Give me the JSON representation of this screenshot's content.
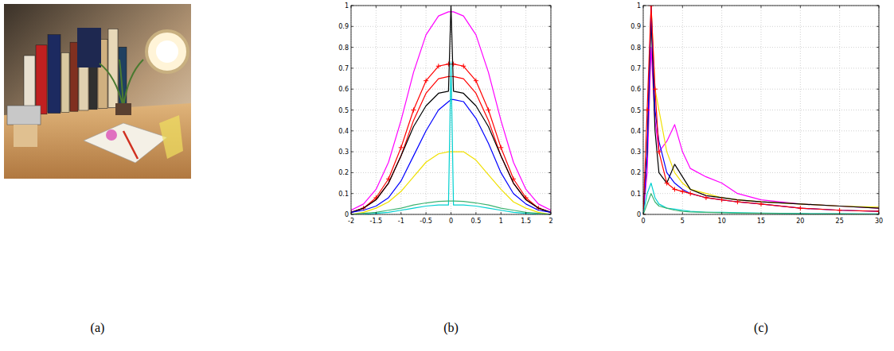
{
  "image": {
    "label": "(a)"
  },
  "chart_data": [
    {
      "type": "line",
      "label": "(b)",
      "grid": true,
      "xlim": [
        -2,
        2
      ],
      "ylim": [
        0,
        1
      ],
      "xticks": [
        -2,
        -1.5,
        -1,
        -0.5,
        0,
        0.5,
        1,
        1.5,
        2
      ],
      "yticks": [
        0,
        0.1,
        0.2,
        0.3,
        0.4,
        0.5,
        0.6,
        0.7,
        0.8,
        0.9,
        1
      ],
      "x": [
        -2,
        -1.75,
        -1.5,
        -1.25,
        -1,
        -0.75,
        -0.5,
        -0.25,
        -0.05,
        0,
        0.05,
        0.25,
        0.5,
        0.75,
        1,
        1.25,
        1.5,
        1.75,
        2
      ],
      "series": [
        {
          "color": "#ff00ff",
          "values": [
            0.02,
            0.05,
            0.12,
            0.25,
            0.45,
            0.68,
            0.86,
            0.95,
            0.97,
            0.97,
            0.97,
            0.95,
            0.86,
            0.68,
            0.45,
            0.25,
            0.12,
            0.05,
            0.02
          ]
        },
        {
          "color": "#ff0000",
          "marker": "plus",
          "values": [
            0.01,
            0.03,
            0.08,
            0.17,
            0.32,
            0.5,
            0.64,
            0.71,
            0.72,
            0.72,
            0.72,
            0.71,
            0.64,
            0.5,
            0.32,
            0.17,
            0.08,
            0.03,
            0.01
          ]
        },
        {
          "color": "#ff0000",
          "values": [
            0.01,
            0.03,
            0.07,
            0.15,
            0.28,
            0.45,
            0.58,
            0.65,
            0.66,
            0.66,
            0.66,
            0.65,
            0.58,
            0.45,
            0.28,
            0.15,
            0.07,
            0.03,
            0.01
          ]
        },
        {
          "color": "#000000",
          "values": [
            0.01,
            0.03,
            0.07,
            0.15,
            0.28,
            0.42,
            0.52,
            0.58,
            0.59,
            1.0,
            0.59,
            0.58,
            0.52,
            0.42,
            0.28,
            0.15,
            0.07,
            0.03,
            0.01
          ]
        },
        {
          "color": "#0000ff",
          "values": [
            0.01,
            0.02,
            0.04,
            0.08,
            0.16,
            0.28,
            0.4,
            0.5,
            0.54,
            0.55,
            0.55,
            0.54,
            0.46,
            0.34,
            0.2,
            0.1,
            0.05,
            0.02,
            0.01
          ]
        },
        {
          "color": "#f0e000",
          "values": [
            0,
            0.01,
            0.03,
            0.06,
            0.11,
            0.18,
            0.25,
            0.29,
            0.3,
            0.3,
            0.3,
            0.3,
            0.26,
            0.19,
            0.12,
            0.06,
            0.03,
            0.01,
            0
          ]
        },
        {
          "color": "#00d0d0",
          "values": [
            0,
            0,
            0.005,
            0.01,
            0.02,
            0.03,
            0.04,
            0.045,
            0.045,
            0.73,
            0.045,
            0.045,
            0.04,
            0.03,
            0.02,
            0.01,
            0.005,
            0,
            0
          ]
        },
        {
          "color": "#3cb371",
          "values": [
            0,
            0.005,
            0.01,
            0.02,
            0.03,
            0.045,
            0.055,
            0.062,
            0.064,
            0.064,
            0.064,
            0.062,
            0.055,
            0.045,
            0.03,
            0.02,
            0.01,
            0.005,
            0
          ]
        }
      ]
    },
    {
      "type": "line",
      "label": "(c)",
      "grid": true,
      "xlim": [
        0,
        30
      ],
      "ylim": [
        0,
        1
      ],
      "xticks": [
        0,
        5,
        10,
        15,
        20,
        25,
        30
      ],
      "yticks": [
        0,
        0.1,
        0.2,
        0.3,
        0.4,
        0.5,
        0.6,
        0.7,
        0.8,
        0.9,
        1
      ],
      "x": [
        0,
        0.5,
        1,
        1.5,
        2,
        3,
        4,
        5,
        6,
        8,
        10,
        12,
        15,
        20,
        25,
        30
      ],
      "series": [
        {
          "color": "#ff00ff",
          "values": [
            0,
            0.2,
            0.8,
            0.45,
            0.3,
            0.35,
            0.43,
            0.3,
            0.22,
            0.18,
            0.15,
            0.1,
            0.07,
            0.05,
            0.04,
            0.03
          ]
        },
        {
          "color": "#f0e000",
          "values": [
            0,
            0.3,
            1.0,
            0.6,
            0.5,
            0.3,
            0.2,
            0.15,
            0.12,
            0.1,
            0.08,
            0.07,
            0.06,
            0.05,
            0.04,
            0.035
          ]
        },
        {
          "color": "#000000",
          "values": [
            0,
            0.3,
            0.95,
            0.4,
            0.2,
            0.15,
            0.24,
            0.18,
            0.12,
            0.09,
            0.08,
            0.07,
            0.06,
            0.05,
            0.04,
            0.03
          ]
        },
        {
          "color": "#0000ff",
          "values": [
            0,
            0.3,
            1.0,
            0.5,
            0.35,
            0.2,
            0.15,
            0.12,
            0.1,
            0.08,
            0.07,
            0.06,
            0.05,
            0.03,
            0.02,
            0.015
          ]
        },
        {
          "color": "#ff0000",
          "marker": "plus",
          "values": [
            0,
            0.5,
            1.0,
            0.6,
            0.3,
            0.15,
            0.12,
            0.11,
            0.1,
            0.08,
            0.07,
            0.06,
            0.05,
            0.03,
            0.02,
            0.015
          ]
        },
        {
          "color": "#00d0d0",
          "values": [
            0,
            0.1,
            0.15,
            0.08,
            0.05,
            0.03,
            0.025,
            0.02,
            0.015,
            0.01,
            0.01,
            0.008,
            0.006,
            0.004,
            0.003,
            0.002
          ]
        },
        {
          "color": "#3cb371",
          "values": [
            0,
            0.05,
            0.1,
            0.06,
            0.04,
            0.03,
            0.02,
            0.015,
            0.012,
            0.01,
            0.008,
            0.006,
            0.005,
            0.003,
            0.002,
            0.001
          ]
        }
      ]
    }
  ]
}
